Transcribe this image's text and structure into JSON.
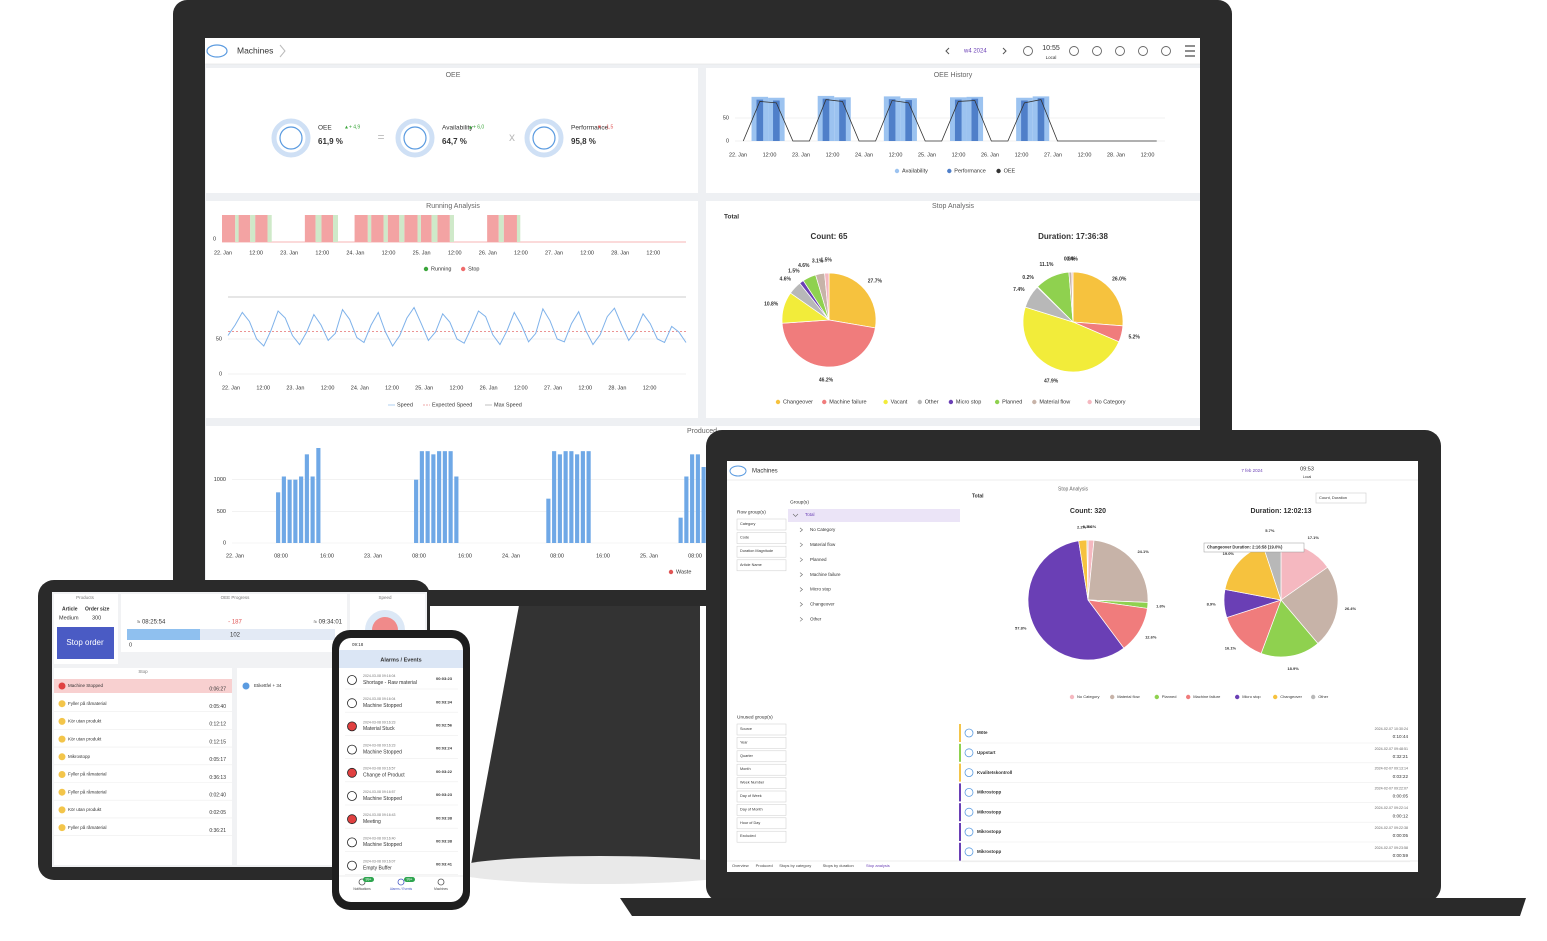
{
  "monitor": {
    "header": {
      "title": "Machines",
      "week": "w4 2024",
      "time": "10:55",
      "zone": "Local"
    },
    "oee": {
      "title": "OEE",
      "equals": "=",
      "times": "x",
      "kpis": [
        {
          "name": "OEE",
          "value": "61,9 %",
          "delta": "▲+ 4,9"
        },
        {
          "name": "Availability",
          "value": "64,7 %",
          "delta": "▲+ 6,0"
        },
        {
          "name": "Performance",
          "value": "95,8 %",
          "delta": "▼ - 1,5"
        }
      ]
    },
    "oee_history": {
      "title": "OEE History",
      "ylim": [
        0,
        100
      ],
      "yticks": [
        0,
        50
      ],
      "xticks": [
        "22. Jan",
        "12:00",
        "23. Jan",
        "12:00",
        "24. Jan",
        "12:00",
        "25. Jan",
        "12:00",
        "26. Jan",
        "12:00",
        "27. Jan",
        "12:00",
        "28. Jan",
        "12:00"
      ],
      "series": [
        {
          "name": "Availability",
          "color": "#9cc3f0",
          "values": [
            0,
            96,
            94,
            0,
            0,
            98,
            95,
            0,
            0,
            97,
            93,
            0,
            0,
            95,
            96,
            0,
            0,
            94,
            97,
            0,
            0,
            0,
            0,
            0,
            0,
            0
          ]
        },
        {
          "name": "Performance",
          "color": "#4f7fc9",
          "values": [
            0,
            90,
            88,
            0,
            0,
            92,
            90,
            0,
            0,
            91,
            89,
            0,
            0,
            90,
            92,
            0,
            0,
            88,
            93,
            0,
            0,
            0,
            0,
            0,
            0,
            0
          ]
        },
        {
          "name": "OEE",
          "color": "#333333",
          "values": [
            0,
            86,
            83,
            0,
            0,
            90,
            86,
            0,
            0,
            88,
            83,
            0,
            0,
            86,
            88,
            0,
            0,
            83,
            90,
            0,
            0,
            0,
            0,
            0,
            0,
            0
          ]
        }
      ]
    },
    "running": {
      "title": "Running Analysis",
      "ylim": [
        0,
        1
      ],
      "yticks": [
        0
      ],
      "xticks": [
        "22. Jan",
        "12:00",
        "23. Jan",
        "12:00",
        "24. Jan",
        "12:00",
        "25. Jan",
        "12:00",
        "26. Jan",
        "12:00",
        "27. Jan",
        "12:00",
        "28. Jan",
        "12:00"
      ],
      "series": [
        {
          "name": "Running",
          "color": "#3aa53a",
          "values": [
            0.2,
            0.3,
            0.25,
            0,
            0,
            0.35,
            0.3,
            0,
            0.2,
            0.25,
            0.3,
            0.2,
            0.35,
            0.25,
            0,
            0,
            0.3,
            0.2,
            0,
            0,
            0,
            0,
            0,
            0,
            0,
            0,
            0,
            0
          ]
        },
        {
          "name": "Stop",
          "color": "#ef6b6b",
          "values": [
            0.8,
            0.7,
            0.75,
            0,
            0,
            0.65,
            0.7,
            0,
            0.8,
            0.75,
            0.7,
            0.8,
            0.65,
            0.75,
            0,
            0,
            0.7,
            0.8,
            0,
            0,
            0,
            0,
            0,
            0,
            0,
            0,
            0,
            0
          ]
        }
      ]
    },
    "speed": {
      "ylim": [
        0,
        120
      ],
      "yticks": [
        0,
        50
      ],
      "xticks": [
        "22. Jan",
        "12:00",
        "23. Jan",
        "12:00",
        "24. Jan",
        "12:00",
        "25. Jan",
        "12:00",
        "26. Jan",
        "12:00",
        "27. Jan",
        "12:00",
        "28. Jan",
        "12:00"
      ],
      "series": [
        {
          "name": "Speed",
          "color": "#7fb2ea",
          "values": [
            55,
            70,
            88,
            75,
            50,
            40,
            62,
            90,
            80,
            55,
            42,
            60,
            85,
            70,
            48,
            58,
            92,
            78,
            52,
            45,
            70,
            88,
            60,
            40,
            55,
            80,
            95,
            72,
            48,
            60,
            86,
            74,
            50,
            44,
            66,
            90,
            82,
            56,
            42,
            62,
            88,
            70,
            46,
            58,
            93,
            76,
            50,
            46,
            72,
            89,
            62,
            42,
            56,
            82,
            94,
            70,
            48,
            62,
            86,
            72,
            50,
            45,
            68,
            60,
            45
          ]
        },
        {
          "name": "Expected Speed",
          "color": "#e05555",
          "value": 61
        },
        {
          "name": "Max Speed",
          "color": "#999999",
          "value": 110
        }
      ]
    },
    "stop_analysis": {
      "title": "Stop Analysis",
      "subtitle": "Total",
      "categories": [
        "Changeover",
        "Machine failure",
        "Vacant",
        "Other",
        "Micro stop",
        "Planned",
        "Material flow",
        "No Category"
      ],
      "colors": [
        "#f6c23e",
        "#f07c7c",
        "#f2ec3a",
        "#b8b8b8",
        "#6a3fb5",
        "#8fd14f",
        "#c7b3a8",
        "#f5b8c0"
      ],
      "pies": [
        {
          "title": "Count: 65",
          "values": [
            27.7,
            46.2,
            10.8,
            4.6,
            1.5,
            4.6,
            3.1,
            1.5
          ],
          "value_labels": [
            "27.7%",
            "46.2%",
            "10.8%",
            "4.6%",
            "1.5%",
            "4.6%",
            "3.1%",
            "1.5%"
          ]
        },
        {
          "title": "Duration: 17:36:38",
          "values": [
            26.0,
            5.2,
            47.9,
            7.4,
            0.2,
            11.1,
            0.9,
            0.4
          ],
          "value_labels": [
            "26.0%",
            "5.2%",
            "47.9%",
            "7.4%",
            "0.2%",
            "11.1%",
            "0.9%",
            "0.4%"
          ]
        }
      ]
    },
    "produced": {
      "title": "Produced",
      "ylim": [
        0,
        1500
      ],
      "yticks": [
        0,
        500,
        1000
      ],
      "legend": [
        "Waste"
      ],
      "legend_color": "#e05555",
      "xticks": [
        "22. Jan",
        "08:00",
        "16:00",
        "23. Jan",
        "08:00",
        "16:00",
        "24. Jan",
        "08:00",
        "16:00",
        "25. Jan",
        "08:00"
      ],
      "color": "#6fa8e6",
      "values": [
        0,
        0,
        0,
        0,
        0,
        0,
        0,
        800,
        1050,
        1000,
        1000,
        1050,
        1400,
        1050,
        1500,
        0,
        0,
        0,
        0,
        0,
        0,
        0,
        0,
        0,
        0,
        0,
        0,
        0,
        0,
        0,
        0,
        1000,
        1450,
        1450,
        1400,
        1450,
        1450,
        1450,
        1050,
        0,
        0,
        0,
        0,
        0,
        0,
        0,
        0,
        0,
        0,
        0,
        0,
        0,
        0,
        0,
        700,
        1450,
        1400,
        1450,
        1450,
        1400,
        1450,
        1450,
        0,
        0,
        0,
        0,
        0,
        0,
        0,
        0,
        0,
        0,
        0,
        0,
        0,
        0,
        0,
        400,
        1050,
        1400,
        1400,
        1200
      ]
    }
  },
  "tablet": {
    "products": {
      "title": "Products",
      "headers": [
        "Article",
        "Order size"
      ],
      "row": [
        "Medium",
        "300"
      ]
    },
    "button": "Stop order",
    "oee_progress": {
      "title": "OEE Progress",
      "start": "≈ 08:25:54",
      "diff": "- 187",
      "end": "≈ 09:34:01",
      "value": "102",
      "min": "0"
    },
    "speed": {
      "title": "Speed"
    },
    "stops": {
      "title": "Stop",
      "rows": [
        {
          "label": "Machine Stopped",
          "time": "0:06:27"
        },
        {
          "label": "Fyller på råmaterial",
          "time": "0:05:40"
        },
        {
          "label": "Kör utan produkt",
          "time": "0:12:12"
        },
        {
          "label": "Kör utan produkt",
          "time": "0:12:15"
        },
        {
          "label": "Mikrostopp",
          "time": "0:05:17"
        },
        {
          "label": "Fyller på råmaterial",
          "time": "0:36:13"
        },
        {
          "label": "Fyller på råmaterial",
          "time": "0:02:40"
        },
        {
          "label": "Kör utan produkt",
          "time": "0:02:05"
        },
        {
          "label": "Fyller på råmaterial",
          "time": "0:36:21"
        }
      ]
    },
    "side": "Etikettfel + 34"
  },
  "phone": {
    "time": "09:18",
    "title": "Alarms / Events",
    "rows": [
      {
        "date": "2024-03-08 09:16:04",
        "label": "Shortage - Raw material",
        "duration": "00:03:23"
      },
      {
        "date": "2024-03-08 09:16:04",
        "label": "Machine Stopped",
        "duration": "00:03:34"
      },
      {
        "date": "2024-03-08 09:16:23",
        "label": "Material Stuck",
        "duration": "00:02:56"
      },
      {
        "date": "2024-03-08 09:16:23",
        "label": "Machine Stopped",
        "duration": "00:03:24"
      },
      {
        "date": "2024-03-08 09:16:57",
        "label": "Change of Product",
        "duration": "00:03:22"
      },
      {
        "date": "2024-03-08 09:16:57",
        "label": "Machine Stopped",
        "duration": "00:03:23"
      },
      {
        "date": "2024-03-08 09:16:43",
        "label": "Meeting",
        "duration": "00:03:38"
      },
      {
        "date": "2024-03-08 09:16:40",
        "label": "Machine Stopped",
        "duration": "00:03:38"
      },
      {
        "date": "2024-03-08 09:16:07",
        "label": "Empty Buffer",
        "duration": "00:03:41"
      }
    ],
    "tabs": [
      "Notifications",
      "Alarms / Events",
      "Machines"
    ],
    "badges": [
      "99+",
      "99+"
    ]
  },
  "laptop": {
    "header": {
      "title": "Machines",
      "date": "7 feb 2024",
      "time": "09:53",
      "zone": "Local"
    },
    "title": "Stop Analysis",
    "subtitle": "Total",
    "selector": "Count, Duration",
    "row_groups": {
      "title": "Row group(s)",
      "items": [
        "Category",
        "Code",
        "Duration Magnitude",
        "Article Name"
      ]
    },
    "groups": {
      "title": "Group(s)",
      "items": [
        "Total",
        "No Category",
        "Material flow",
        "Planned",
        "Machine failure",
        "Micro stop",
        "Changeover",
        "Other"
      ]
    },
    "categories": [
      "No Category",
      "Material flow",
      "Planned",
      "Machine failure",
      "Micro stop",
      "Changeover",
      "Other"
    ],
    "colors": [
      "#f5b8c0",
      "#c7b3a8",
      "#8fd14f",
      "#f07c7c",
      "#6a3fb5",
      "#f6c23e",
      "#b8b8b8"
    ],
    "pies": [
      {
        "title": "Count: 320",
        "values": [
          1.6,
          24.1,
          1.6,
          12.6,
          57.8,
          2.2,
          0.3
        ],
        "value_labels": [
          "1.6%",
          "24.1%",
          "1.6%",
          "12.6%",
          "57.8%",
          "2.2%",
          "0.3%"
        ]
      },
      {
        "title": "Duration: 12:02:13",
        "values": [
          17.1,
          26.4,
          18.9,
          16.1,
          8.9,
          19.0,
          5.7
        ],
        "value_labels": [
          "17.1%",
          "26.4%",
          "18.9%",
          "16.1%",
          "8.9%",
          "19.0%",
          "5.7%"
        ]
      }
    ],
    "tooltip": "Changeover Duration: 2:16:58 (19.0%)",
    "unused_groups": {
      "title": "Unused group(s)",
      "items": [
        "Source",
        "Year",
        "Quarter",
        "Month",
        "Week Number",
        "Day of Week",
        "Day of Month",
        "Hour of Day",
        "Excluded"
      ]
    },
    "events": [
      {
        "label": "Möte",
        "date": "2024-02-07 10:30:24",
        "duration": "0:10:44"
      },
      {
        "label": "Uppstart",
        "date": "2024-02-07 09:48:51",
        "duration": "0:32:21"
      },
      {
        "label": "Kvalitetskontroll",
        "date": "2024-02-07 09:13:14",
        "duration": "0:03:22"
      },
      {
        "label": "Mikrostopp",
        "date": "2024-02-07 09:22:07",
        "duration": "0:00:05"
      },
      {
        "label": "Mikrostopp",
        "date": "2024-02-07 09:22:14",
        "duration": "0:00:12"
      },
      {
        "label": "Mikrostopp",
        "date": "2024-02-07 09:22:38",
        "duration": "0:00:05"
      },
      {
        "label": "Mikrostopp",
        "date": "2024-02-07 09:23:58",
        "duration": "0:00:59"
      }
    ],
    "tabs": [
      "Overview",
      "Produced",
      "Stops by category",
      "Stops by duration",
      "Stop analysis"
    ]
  }
}
